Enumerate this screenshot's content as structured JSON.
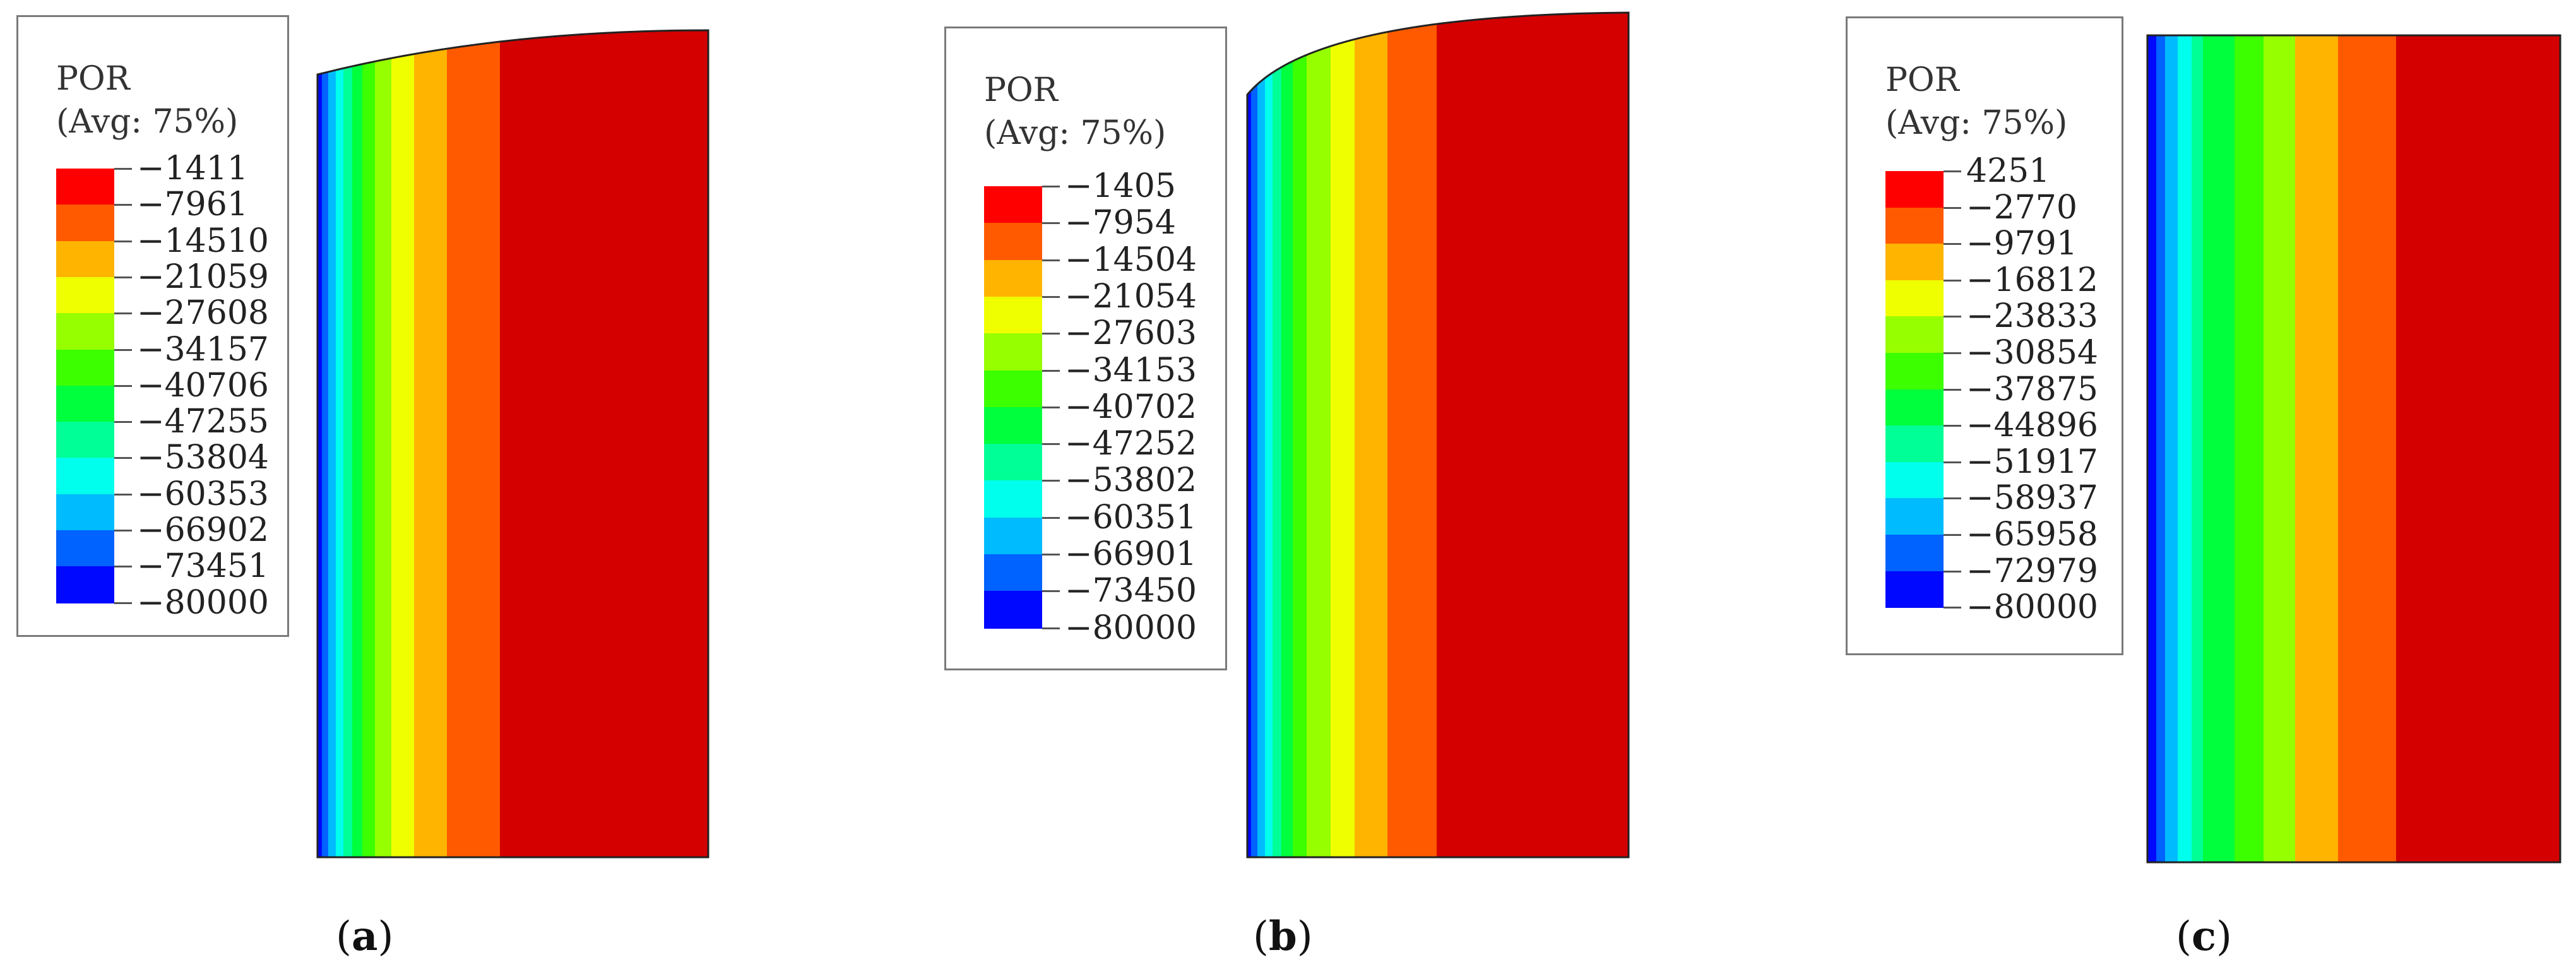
{
  "panels": [
    {
      "id": "a",
      "legend_title": "POR",
      "legend_subtitle": "(Avg: 75%)",
      "tick_labels": [
        "−1411",
        "−7961",
        "−14510",
        "−21059",
        "−27608",
        "−34157",
        "−40706",
        "−47255",
        "−53804",
        "−60353",
        "−66902",
        "−73451",
        "−80000"
      ],
      "caption_letter": "a"
    },
    {
      "id": "b",
      "legend_title": "POR",
      "legend_subtitle": "(Avg: 75%)",
      "tick_labels": [
        "−1405",
        "−7954",
        "−14504",
        "−21054",
        "−27603",
        "−34153",
        "−40702",
        "−47252",
        "−53802",
        "−60351",
        "−66901",
        "−73450",
        "−80000"
      ],
      "caption_letter": "b"
    },
    {
      "id": "c",
      "legend_title": "POR",
      "legend_subtitle": "(Avg: 75%)",
      "tick_labels": [
        "4251",
        "−2770",
        "−9791",
        "−16812",
        "−23833",
        "−30854",
        "−37875",
        "−44896",
        "−51917",
        "−58937",
        "−65958",
        "−72979",
        "−80000"
      ],
      "caption_letter": "c"
    }
  ],
  "colors": {
    "scale_top_to_bottom": [
      "#ff0000",
      "#ff5a00",
      "#ffb400",
      "#f0ff00",
      "#96ff00",
      "#3cff00",
      "#00ff3c",
      "#00ff96",
      "#00ffec",
      "#00bcff",
      "#0062ff",
      "#0008ff"
    ],
    "contour_fill": "#d40000"
  }
}
